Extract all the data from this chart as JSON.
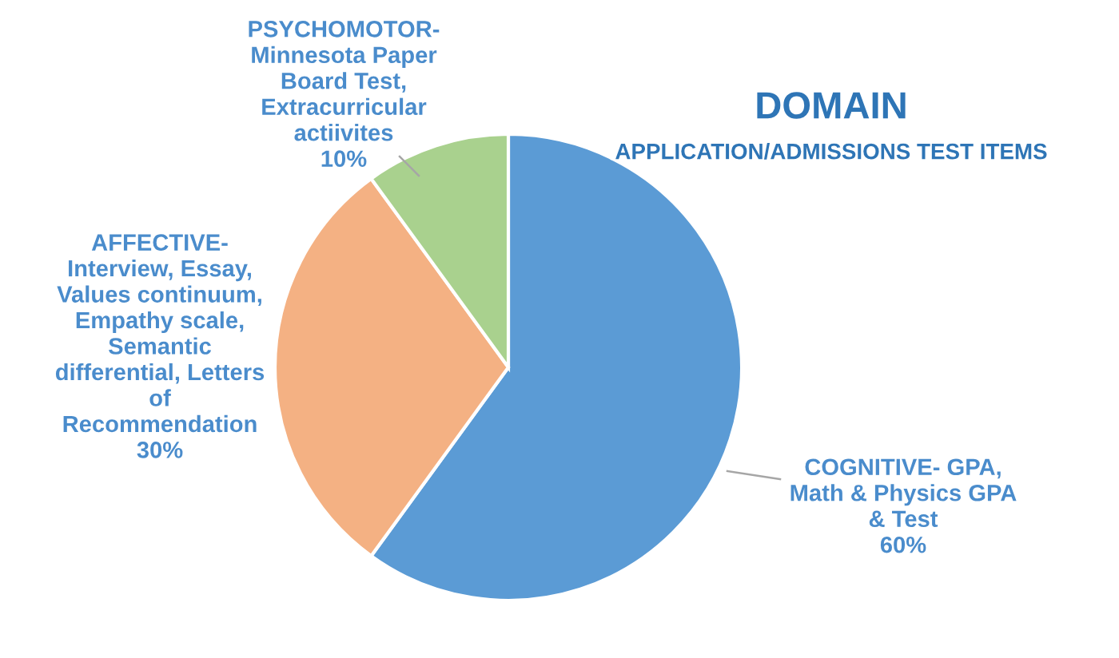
{
  "chart_data": {
    "type": "pie",
    "title": "DOMAIN",
    "subtitle": "APPLICATION/ADMISSIONS TEST ITEMS",
    "categories": [
      "COGNITIVE- GPA,\nMath & Physics GPA\n& Test",
      "AFFECTIVE-\nInterview, Essay,\nValues continuum,\nEmpathy scale,\nSemantic\ndifferential, Letters\nof\nRecommendation",
      "PSYCHOMOTOR-\nMinnesota Paper\nBoard Test,\nExtracurricular\nactiivites"
    ],
    "values": [
      60,
      30,
      10
    ],
    "colors": [
      "#5b9bd5",
      "#f4b183",
      "#a9d18e"
    ],
    "value_labels": [
      "60%",
      "30%",
      "10%"
    ],
    "legend": false
  }
}
